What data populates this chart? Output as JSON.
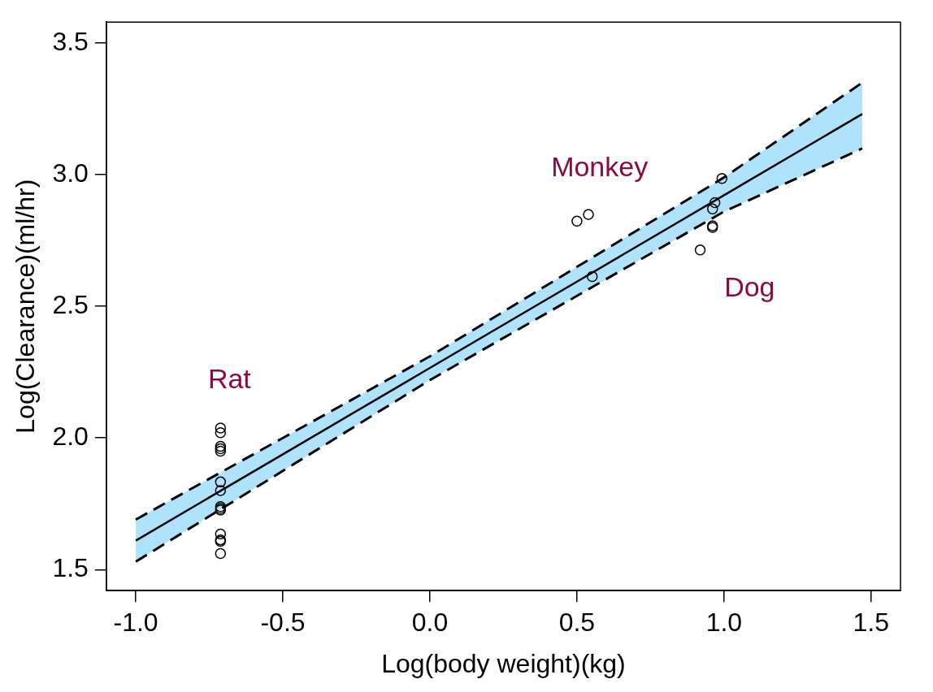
{
  "chart_data": {
    "type": "scatter",
    "xlabel": "Log(body weight)(kg)",
    "ylabel": "Log(Clearance)(ml/hr)",
    "xlim": [
      -1.1,
      1.6
    ],
    "ylim": [
      1.42,
      3.58
    ],
    "xticks": [
      {
        "value": -1,
        "label": "-1.0"
      },
      {
        "value": -0.5,
        "label": "-0.5"
      },
      {
        "value": 0,
        "label": "0.0"
      },
      {
        "value": 0.5,
        "label": "0.5"
      },
      {
        "value": 1,
        "label": "1.0"
      },
      {
        "value": 1.5,
        "label": "1.5"
      }
    ],
    "yticks": [
      {
        "value": 1.5,
        "label": "1.5"
      },
      {
        "value": 2,
        "label": "2.0"
      },
      {
        "value": 2.5,
        "label": "2.5"
      },
      {
        "value": 3,
        "label": "3.0"
      },
      {
        "value": 3.5,
        "label": "3.5"
      }
    ],
    "grid": false,
    "legend": false,
    "series": [
      {
        "type": "line",
        "color": "#000000",
        "marker": "none",
        "line_style": "solid",
        "x": [
          -1,
          -0.5,
          0,
          0.5,
          1,
          1.47
        ],
        "values": [
          1.61,
          1.938,
          2.266,
          2.594,
          2.922,
          3.231
        ],
        "lower": [
          1.53,
          1.875,
          2.22,
          2.54,
          2.86,
          3.1
        ],
        "upper": [
          1.69,
          2.0,
          2.31,
          2.65,
          2.99,
          3.35
        ]
      },
      {
        "type": "line",
        "color": "#000000",
        "marker": "none",
        "line_style": "dashed",
        "x": [
          -1,
          -0.5,
          0,
          0.5,
          1,
          1.47
        ],
        "values": [
          1.69,
          2.0,
          2.31,
          2.65,
          2.99,
          3.35
        ]
      },
      {
        "type": "line",
        "color": "#000000",
        "marker": "none",
        "line_style": "dashed",
        "x": [
          -1,
          -0.5,
          0,
          0.5,
          1,
          1.47
        ],
        "values": [
          1.53,
          1.875,
          2.22,
          2.54,
          2.86,
          3.1
        ]
      },
      {
        "color": "#000000",
        "marker": "circle",
        "x": [
          -0.712,
          -0.712,
          -0.712,
          -0.712,
          -0.712,
          -0.712,
          -0.712,
          -0.712,
          -0.712,
          -0.712,
          -0.712,
          -0.712,
          -0.712,
          -0.712,
          0.5,
          0.539,
          0.552,
          0.993,
          0.969,
          0.961,
          0.961,
          0.961,
          0.919
        ],
        "values": [
          2.038,
          2.02,
          1.968,
          1.959,
          1.95,
          1.833,
          1.8,
          1.739,
          1.732,
          1.726,
          1.635,
          1.613,
          1.607,
          1.561,
          2.824,
          2.849,
          2.613,
          2.986,
          2.894,
          2.87,
          2.806,
          2.8,
          2.714
        ]
      }
    ],
    "annotations": [
      "Rat",
      "Monkey",
      "Dog"
    ]
  }
}
